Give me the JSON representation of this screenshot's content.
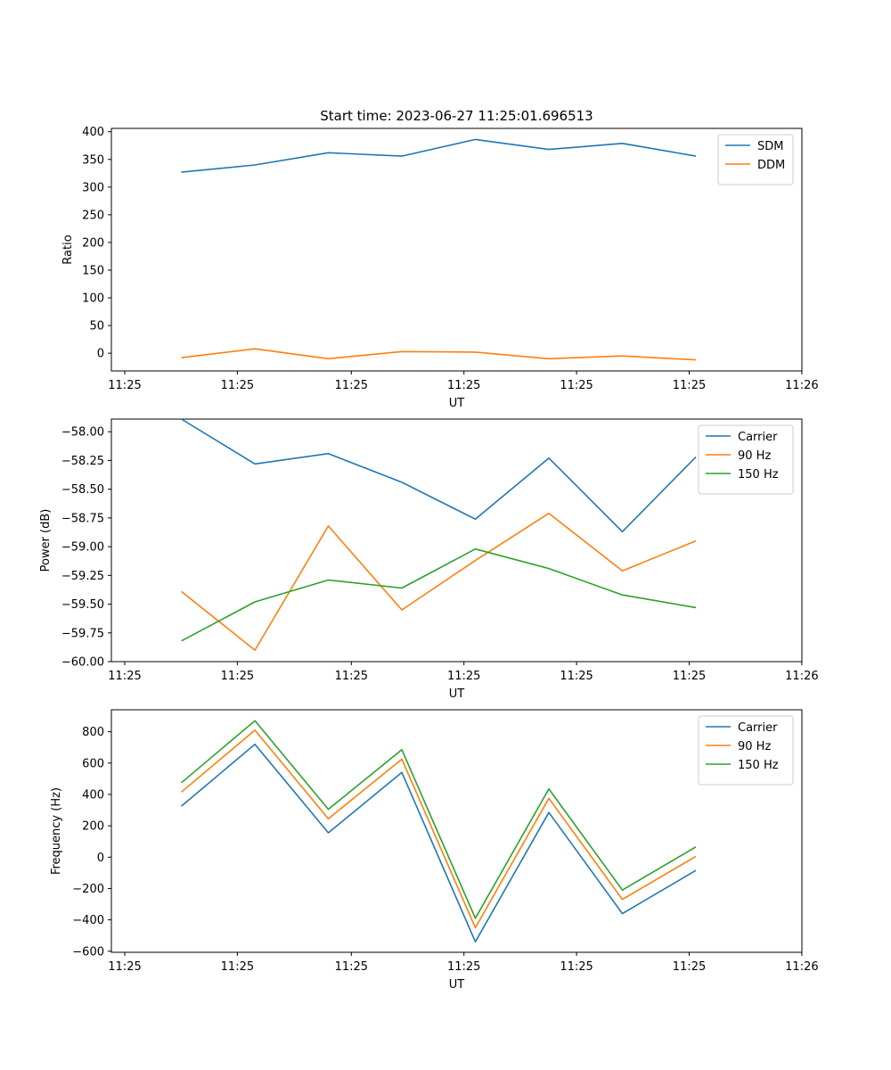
{
  "title": "Start time: 2023-06-27 11:25:01.696513",
  "colors": {
    "blue": "#1f77b4",
    "orange": "#ff7f0e",
    "green": "#2ca02c"
  },
  "chart_data": [
    {
      "type": "line",
      "title": "Start time: 2023-06-27 11:25:01.696513",
      "xlabel": "UT",
      "ylabel": "Ratio",
      "x_tick_labels": [
        "11:25",
        "11:25",
        "11:25",
        "11:25",
        "11:25",
        "11:25",
        "11:25",
        "11:26"
      ],
      "yticks": [
        0,
        50,
        100,
        150,
        200,
        250,
        300,
        350,
        400
      ],
      "ylim": [
        -32,
        406
      ],
      "grid": false,
      "legend": "top-right",
      "series": [
        {
          "name": "SDM",
          "color": "#1f77b4",
          "values": [
            327,
            340,
            362,
            356,
            386,
            368,
            379,
            356
          ]
        },
        {
          "name": "DDM",
          "color": "#ff7f0e",
          "values": [
            -8,
            8,
            -10,
            3,
            2,
            -10,
            -5,
            -12
          ]
        }
      ]
    },
    {
      "type": "line",
      "xlabel": "UT",
      "ylabel": "Power (dB)",
      "x_tick_labels": [
        "11:25",
        "11:25",
        "11:25",
        "11:25",
        "11:25",
        "11:25",
        "11:25",
        "11:26"
      ],
      "yticks": [
        -60.0,
        -59.75,
        -59.5,
        -59.25,
        -59.0,
        -58.75,
        -58.5,
        -58.25,
        -58.0
      ],
      "ytick_labels": [
        "−60.00",
        "−59.75",
        "−59.50",
        "−59.25",
        "−59.00",
        "−58.75",
        "−58.50",
        "−58.25",
        "−58.00"
      ],
      "ylim": [
        -60.0,
        -57.89
      ],
      "grid": false,
      "legend": "top-right",
      "series": [
        {
          "name": "Carrier",
          "color": "#1f77b4",
          "values": [
            -57.89,
            -58.28,
            -58.19,
            -58.44,
            -58.76,
            -58.23,
            -58.87,
            -58.22
          ]
        },
        {
          "name": "90 Hz",
          "color": "#ff7f0e",
          "values": [
            -59.39,
            -59.9,
            -58.82,
            -59.55,
            -59.12,
            -58.71,
            -59.21,
            -58.95
          ]
        },
        {
          "name": "150 Hz",
          "color": "#2ca02c",
          "values": [
            -59.82,
            -59.48,
            -59.29,
            -59.36,
            -59.02,
            -59.19,
            -59.42,
            -59.53
          ]
        }
      ]
    },
    {
      "type": "line",
      "xlabel": "UT",
      "ylabel": "Frequency (Hz)",
      "x_tick_labels": [
        "11:25",
        "11:25",
        "11:25",
        "11:25",
        "11:25",
        "11:25",
        "11:25",
        "11:26"
      ],
      "yticks": [
        -600,
        -400,
        -200,
        0,
        200,
        400,
        600,
        800
      ],
      "ytick_labels": [
        "−600",
        "−400",
        "−200",
        "0",
        "200",
        "400",
        "600",
        "800"
      ],
      "ylim": [
        -607,
        940
      ],
      "grid": false,
      "legend": "top-right",
      "series": [
        {
          "name": "Carrier",
          "color": "#1f77b4",
          "values": [
            325,
            720,
            155,
            540,
            -540,
            285,
            -360,
            -85
          ]
        },
        {
          "name": "90 Hz",
          "color": "#ff7f0e",
          "values": [
            415,
            810,
            245,
            625,
            -450,
            375,
            -270,
            5
          ]
        },
        {
          "name": "150 Hz",
          "color": "#2ca02c",
          "values": [
            475,
            870,
            305,
            685,
            -390,
            435,
            -210,
            65
          ]
        }
      ]
    }
  ]
}
